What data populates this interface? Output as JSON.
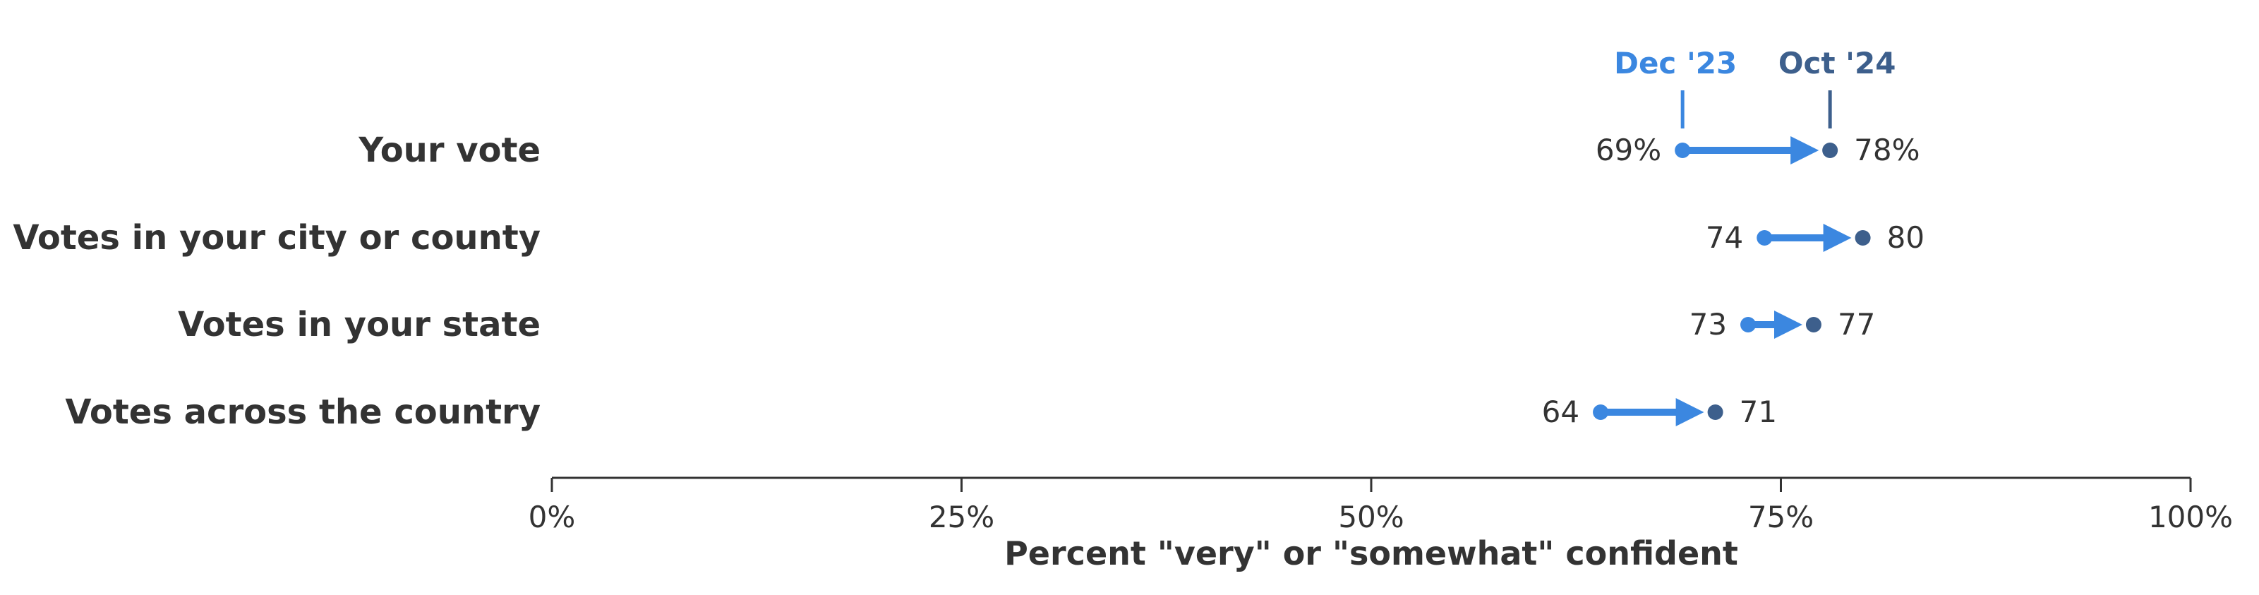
{
  "chart_data": {
    "type": "dumbbell",
    "title": "",
    "xlabel": "Percent \"very\" or \"somewhat\" confident",
    "ylabel": "",
    "xlim": [
      0,
      100
    ],
    "x_ticks": [
      0,
      25,
      50,
      75,
      100
    ],
    "x_tick_labels": [
      "0%",
      "25%",
      "50%",
      "75%",
      "100%"
    ],
    "categories": [
      "Your vote",
      "Votes in your city or county",
      "Votes in your state",
      "Votes across the country"
    ],
    "series": [
      {
        "name": "Dec '23",
        "color": "#3b87e0",
        "values": [
          69,
          74,
          73,
          64
        ],
        "labels": [
          "69%",
          "74",
          "73",
          "64"
        ]
      },
      {
        "name": "Oct '24",
        "color": "#3d5f8c",
        "values": [
          78,
          80,
          77,
          71
        ],
        "labels": [
          "78%",
          "80",
          "77",
          "71"
        ]
      }
    ],
    "legend_placement": "top, above first row",
    "grid": false
  }
}
